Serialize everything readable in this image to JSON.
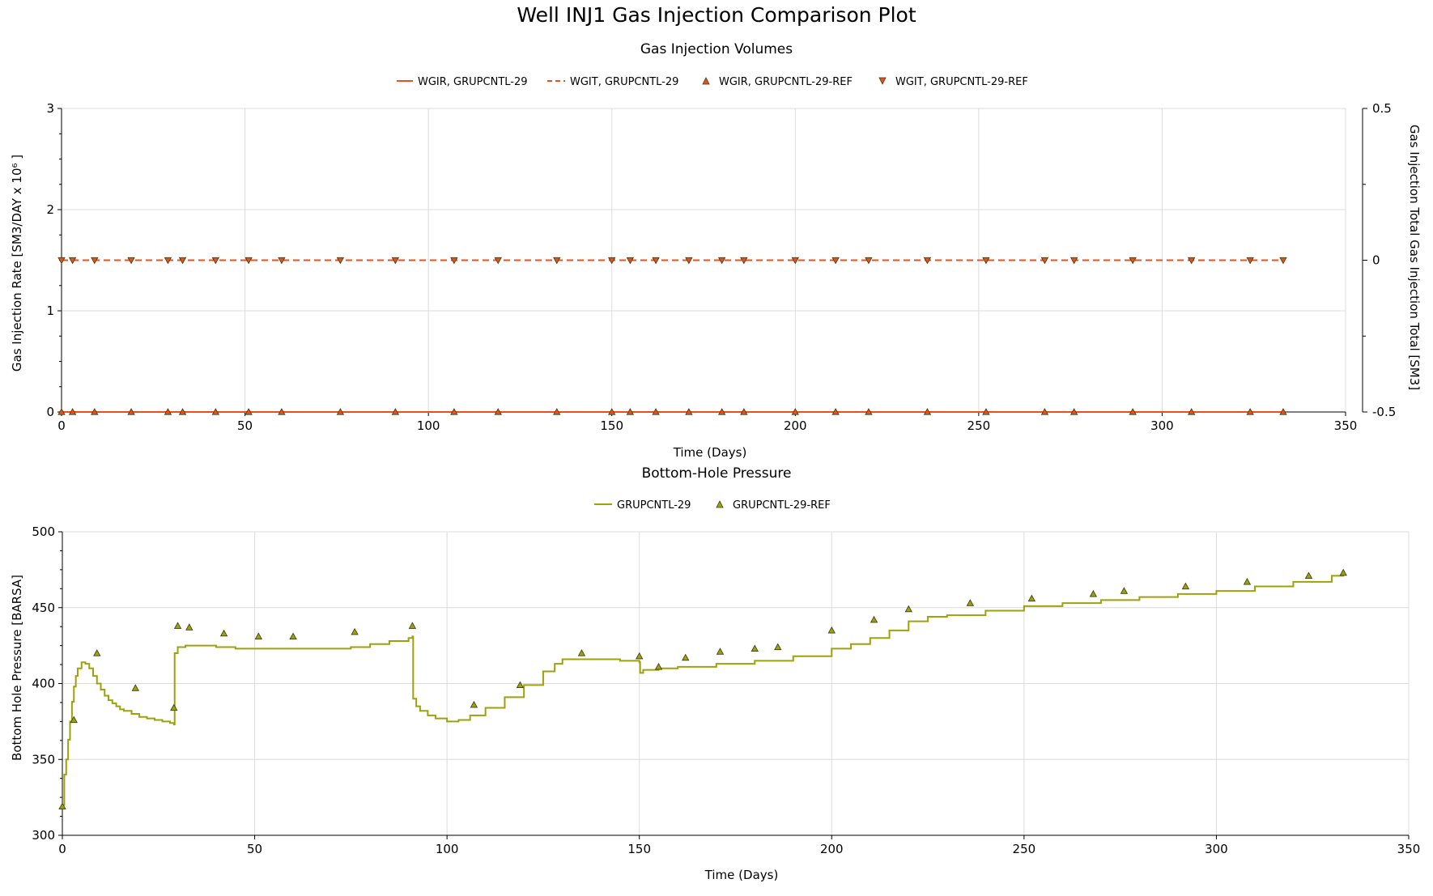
{
  "figure_title": "Well INJ1 Gas Injection Comparison Plot",
  "colors": {
    "gas_rate": "#e8501e",
    "bhp": "#9ca20c",
    "marker_stroke": "#3a3a10",
    "grid": "#dcdcdc"
  },
  "chart_data": [
    {
      "type": "line",
      "title": "Gas Injection Volumes",
      "xlabel": "Time (Days)",
      "ylabel": "Gas Injection Rate [SM3/DAY x 10⁶ ]",
      "y2label": "Gas Injection Total Gas Injection Total [SM3]",
      "xlim": [
        0,
        350
      ],
      "ylim": [
        0,
        3
      ],
      "y2lim": [
        -0.5,
        0.5
      ],
      "xticks": [
        "0",
        "50",
        "100",
        "150",
        "200",
        "250",
        "300",
        "350"
      ],
      "yticks": [
        "0",
        "1",
        "2",
        "3"
      ],
      "y2ticks": [
        "-0.5",
        "0",
        "0.5"
      ],
      "grid": true,
      "legend_position": "top-center",
      "series": [
        {
          "name": "WGIR, GRUPCNTL-29",
          "style": "solid-line",
          "axis": "left",
          "x": [
            0,
            333
          ],
          "y": [
            0,
            0
          ]
        },
        {
          "name": "WGIT, GRUPCNTL-29",
          "style": "dashed-line",
          "axis": "right",
          "x": [
            0,
            333
          ],
          "y": [
            0,
            0
          ]
        },
        {
          "name": "WGIR, GRUPCNTL-29-REF",
          "style": "triangle-up",
          "axis": "left",
          "x": [
            0,
            3,
            9,
            19,
            29,
            33,
            42,
            51,
            60,
            76,
            91,
            107,
            119,
            135,
            150,
            155,
            162,
            171,
            180,
            186,
            200,
            211,
            220,
            236,
            252,
            268,
            276,
            292,
            308,
            324,
            333
          ],
          "y": [
            0,
            0,
            0,
            0,
            0,
            0,
            0,
            0,
            0,
            0,
            0,
            0,
            0,
            0,
            0,
            0,
            0,
            0,
            0,
            0,
            0,
            0,
            0,
            0,
            0,
            0,
            0,
            0,
            0,
            0,
            0
          ]
        },
        {
          "name": "WGIT, GRUPCNTL-29-REF",
          "style": "triangle-down",
          "axis": "right",
          "x": [
            0,
            3,
            9,
            19,
            29,
            33,
            42,
            51,
            60,
            76,
            91,
            107,
            119,
            135,
            150,
            155,
            162,
            171,
            180,
            186,
            200,
            211,
            220,
            236,
            252,
            268,
            276,
            292,
            308,
            324,
            333
          ],
          "y": [
            0,
            0,
            0,
            0,
            0,
            0,
            0,
            0,
            0,
            0,
            0,
            0,
            0,
            0,
            0,
            0,
            0,
            0,
            0,
            0,
            0,
            0,
            0,
            0,
            0,
            0,
            0,
            0,
            0,
            0,
            0
          ]
        }
      ]
    },
    {
      "type": "line",
      "title": "Bottom-Hole Pressure",
      "xlabel": "Time (Days)",
      "ylabel": "Bottom Hole Pressure [BARSA]",
      "xlim": [
        0,
        350
      ],
      "ylim": [
        300,
        500
      ],
      "xticks": [
        "0",
        "50",
        "100",
        "150",
        "200",
        "250",
        "300",
        "350"
      ],
      "yticks": [
        "300",
        "350",
        "400",
        "450",
        "500"
      ],
      "grid": true,
      "legend_position": "top-center",
      "series": [
        {
          "name": "GRUPCNTL-29",
          "style": "step-line",
          "x": [
            0,
            0.5,
            1,
            1.5,
            2,
            2.5,
            3,
            3.5,
            4,
            5,
            6,
            7,
            8,
            9,
            10,
            11,
            12,
            13,
            14,
            15,
            16,
            18,
            20,
            22,
            24,
            26,
            28,
            29,
            29.2,
            30,
            32,
            34,
            36,
            40,
            45,
            50,
            55,
            60,
            65,
            70,
            75,
            80,
            85,
            90,
            91,
            91.2,
            92,
            93,
            95,
            97,
            100,
            103,
            106,
            110,
            115,
            120,
            125,
            128,
            130,
            135,
            140,
            145,
            150,
            150.2,
            151,
            155,
            160,
            170,
            180,
            190,
            200,
            205,
            210,
            215,
            220,
            225,
            230,
            240,
            250,
            260,
            270,
            280,
            290,
            300,
            310,
            320,
            330,
            333
          ],
          "y": [
            320,
            340,
            350,
            363,
            375,
            388,
            398,
            405,
            410,
            414,
            413,
            410,
            405,
            400,
            396,
            392,
            389,
            387,
            385,
            383,
            382,
            380,
            378,
            377,
            376,
            375,
            374,
            373,
            420,
            424,
            425,
            425,
            425,
            424,
            423,
            423,
            423,
            423,
            423,
            423,
            424,
            426,
            428,
            430,
            431,
            390,
            385,
            382,
            379,
            377,
            375,
            376,
            379,
            384,
            391,
            399,
            408,
            413,
            416,
            416,
            416,
            415,
            414,
            407,
            409,
            410,
            411,
            413,
            415,
            418,
            423,
            426,
            430,
            435,
            441,
            444,
            445,
            448,
            451,
            453,
            455,
            457,
            459,
            461,
            464,
            467,
            471,
            473
          ]
        },
        {
          "name": "GRUPCNTL-29-REF",
          "style": "triangle-up",
          "x": [
            0,
            3,
            9,
            19,
            29,
            30,
            33,
            42,
            51,
            60,
            76,
            91,
            107,
            119,
            135,
            150,
            155,
            162,
            171,
            180,
            186,
            200,
            211,
            220,
            236,
            252,
            268,
            276,
            292,
            308,
            324,
            333
          ],
          "y": [
            319,
            376,
            420,
            397,
            384,
            438,
            437,
            433,
            431,
            431,
            434,
            438,
            386,
            399,
            420,
            418,
            411,
            417,
            421,
            423,
            424,
            435,
            442,
            449,
            453,
            456,
            459,
            461,
            464,
            467,
            471,
            473
          ]
        }
      ]
    }
  ]
}
